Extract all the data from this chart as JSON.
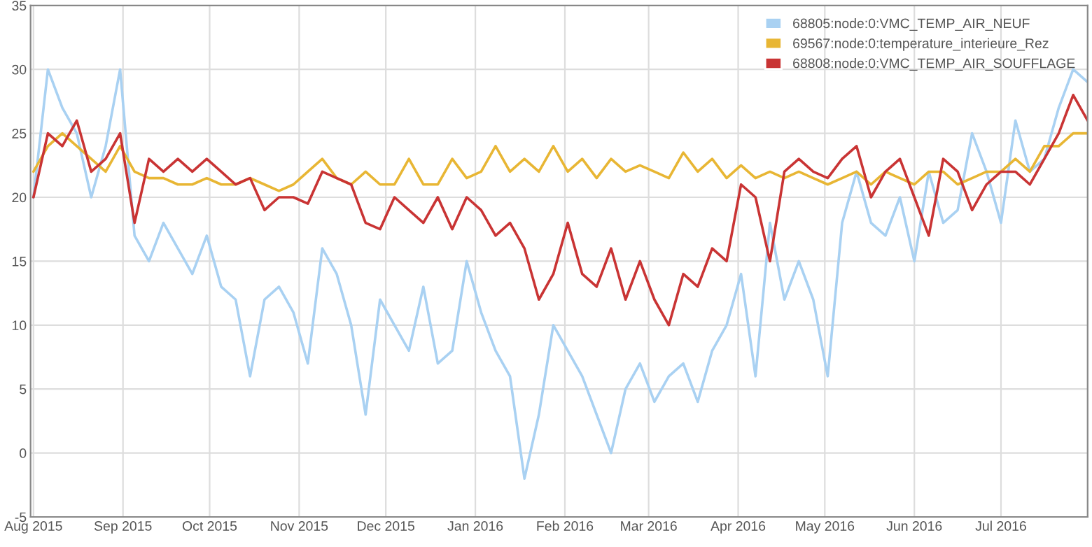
{
  "chart_data": {
    "type": "line",
    "x": [
      "2015-08-01",
      "2015-08-06",
      "2015-08-11",
      "2015-08-16",
      "2015-08-21",
      "2015-08-26",
      "2015-08-31",
      "2015-09-05",
      "2015-09-10",
      "2015-09-15",
      "2015-09-20",
      "2015-09-25",
      "2015-09-30",
      "2015-10-05",
      "2015-10-10",
      "2015-10-15",
      "2015-10-20",
      "2015-10-25",
      "2015-10-30",
      "2015-11-04",
      "2015-11-09",
      "2015-11-14",
      "2015-11-19",
      "2015-11-24",
      "2015-11-29",
      "2015-12-04",
      "2015-12-09",
      "2015-12-14",
      "2015-12-19",
      "2015-12-24",
      "2015-12-29",
      "2016-01-03",
      "2016-01-08",
      "2016-01-13",
      "2016-01-18",
      "2016-01-23",
      "2016-01-28",
      "2016-02-02",
      "2016-02-07",
      "2016-02-12",
      "2016-02-17",
      "2016-02-22",
      "2016-02-27",
      "2016-03-03",
      "2016-03-08",
      "2016-03-13",
      "2016-03-18",
      "2016-03-23",
      "2016-03-28",
      "2016-04-02",
      "2016-04-07",
      "2016-04-12",
      "2016-04-17",
      "2016-04-22",
      "2016-04-27",
      "2016-05-02",
      "2016-05-07",
      "2016-05-12",
      "2016-05-17",
      "2016-05-22",
      "2016-05-27",
      "2016-06-01",
      "2016-06-06",
      "2016-06-11",
      "2016-06-16",
      "2016-06-21",
      "2016-06-26",
      "2016-07-01",
      "2016-07-06",
      "2016-07-11",
      "2016-07-16",
      "2016-07-21",
      "2016-07-26",
      "2016-07-31"
    ],
    "series": [
      {
        "name": "68805:node:0:VMC_TEMP_AIR_NEUF",
        "color": "#a9d1f2",
        "values": [
          20,
          30,
          27,
          25,
          20,
          24,
          30,
          17,
          15,
          18,
          16,
          14,
          17,
          13,
          12,
          6,
          12,
          13,
          11,
          7,
          16,
          14,
          10,
          3,
          12,
          10,
          8,
          13,
          7,
          8,
          15,
          11,
          8,
          6,
          -2,
          3,
          10,
          8,
          6,
          3,
          0,
          5,
          7,
          4,
          6,
          7,
          4,
          8,
          10,
          14,
          6,
          18,
          12,
          15,
          12,
          6,
          18,
          22,
          18,
          17,
          20,
          15,
          22,
          18,
          19,
          25,
          22,
          18,
          26,
          22,
          23,
          27,
          30,
          29
        ]
      },
      {
        "name": "69567:node:0:temperature_interieure_Rez",
        "color": "#e8b634",
        "values": [
          22,
          24,
          25,
          24,
          23,
          22,
          24,
          22,
          21.5,
          21.5,
          21,
          21,
          21.5,
          21,
          21,
          21.5,
          21,
          20.5,
          21,
          22,
          23,
          21.5,
          21,
          22,
          21,
          21,
          23,
          21,
          21,
          23,
          21.5,
          22,
          24,
          22,
          23,
          22,
          24,
          22,
          23,
          21.5,
          23,
          22,
          22.5,
          22,
          21.5,
          23.5,
          22,
          23,
          21.5,
          22.5,
          21.5,
          22,
          21.5,
          22,
          21.5,
          21,
          21.5,
          22,
          21,
          22,
          21.5,
          21,
          22,
          22,
          21,
          21.5,
          22,
          22,
          23,
          22,
          24,
          24,
          25,
          25
        ]
      },
      {
        "name": "68808:node:0:VMC_TEMP_AIR_SOUFFLAGE",
        "color": "#c93434",
        "values": [
          20,
          25,
          24,
          26,
          22,
          23,
          25,
          18,
          23,
          22,
          23,
          22,
          23,
          22,
          21,
          21.5,
          19,
          20,
          20,
          19.5,
          22,
          21.5,
          21,
          18,
          17.5,
          20,
          19,
          18,
          20,
          17.5,
          20,
          19,
          17,
          18,
          16,
          12,
          14,
          18,
          14,
          13,
          16,
          12,
          15,
          12,
          10,
          14,
          13,
          16,
          15,
          21,
          20,
          15,
          22,
          23,
          22,
          21.5,
          23,
          24,
          20,
          22,
          23,
          20,
          17,
          23,
          22,
          19,
          21,
          22,
          22,
          21,
          23,
          25,
          28,
          26
        ]
      }
    ],
    "xlim": [
      "2015-07-31",
      "2016-07-31"
    ],
    "xticks": [
      {
        "value": "2015-08-01",
        "label": "Aug 2015"
      },
      {
        "value": "2015-09-01",
        "label": "Sep 2015"
      },
      {
        "value": "2015-10-01",
        "label": "Oct 2015"
      },
      {
        "value": "2015-11-01",
        "label": "Nov 2015"
      },
      {
        "value": "2015-12-01",
        "label": "Dec 2015"
      },
      {
        "value": "2016-01-01",
        "label": "Jan 2016"
      },
      {
        "value": "2016-02-01",
        "label": "Feb 2016"
      },
      {
        "value": "2016-03-01",
        "label": "Mar 2016"
      },
      {
        "value": "2016-04-01",
        "label": "Apr 2016"
      },
      {
        "value": "2016-05-01",
        "label": "May 2016"
      },
      {
        "value": "2016-06-01",
        "label": "Jun 2016"
      },
      {
        "value": "2016-07-01",
        "label": "Jul 2016"
      }
    ],
    "ylim": [
      -5,
      35
    ],
    "yticks": [
      -5,
      0,
      5,
      10,
      15,
      20,
      25,
      30,
      35
    ],
    "grid": true,
    "legend": "top right",
    "marker": "none",
    "line_style": "solid"
  }
}
